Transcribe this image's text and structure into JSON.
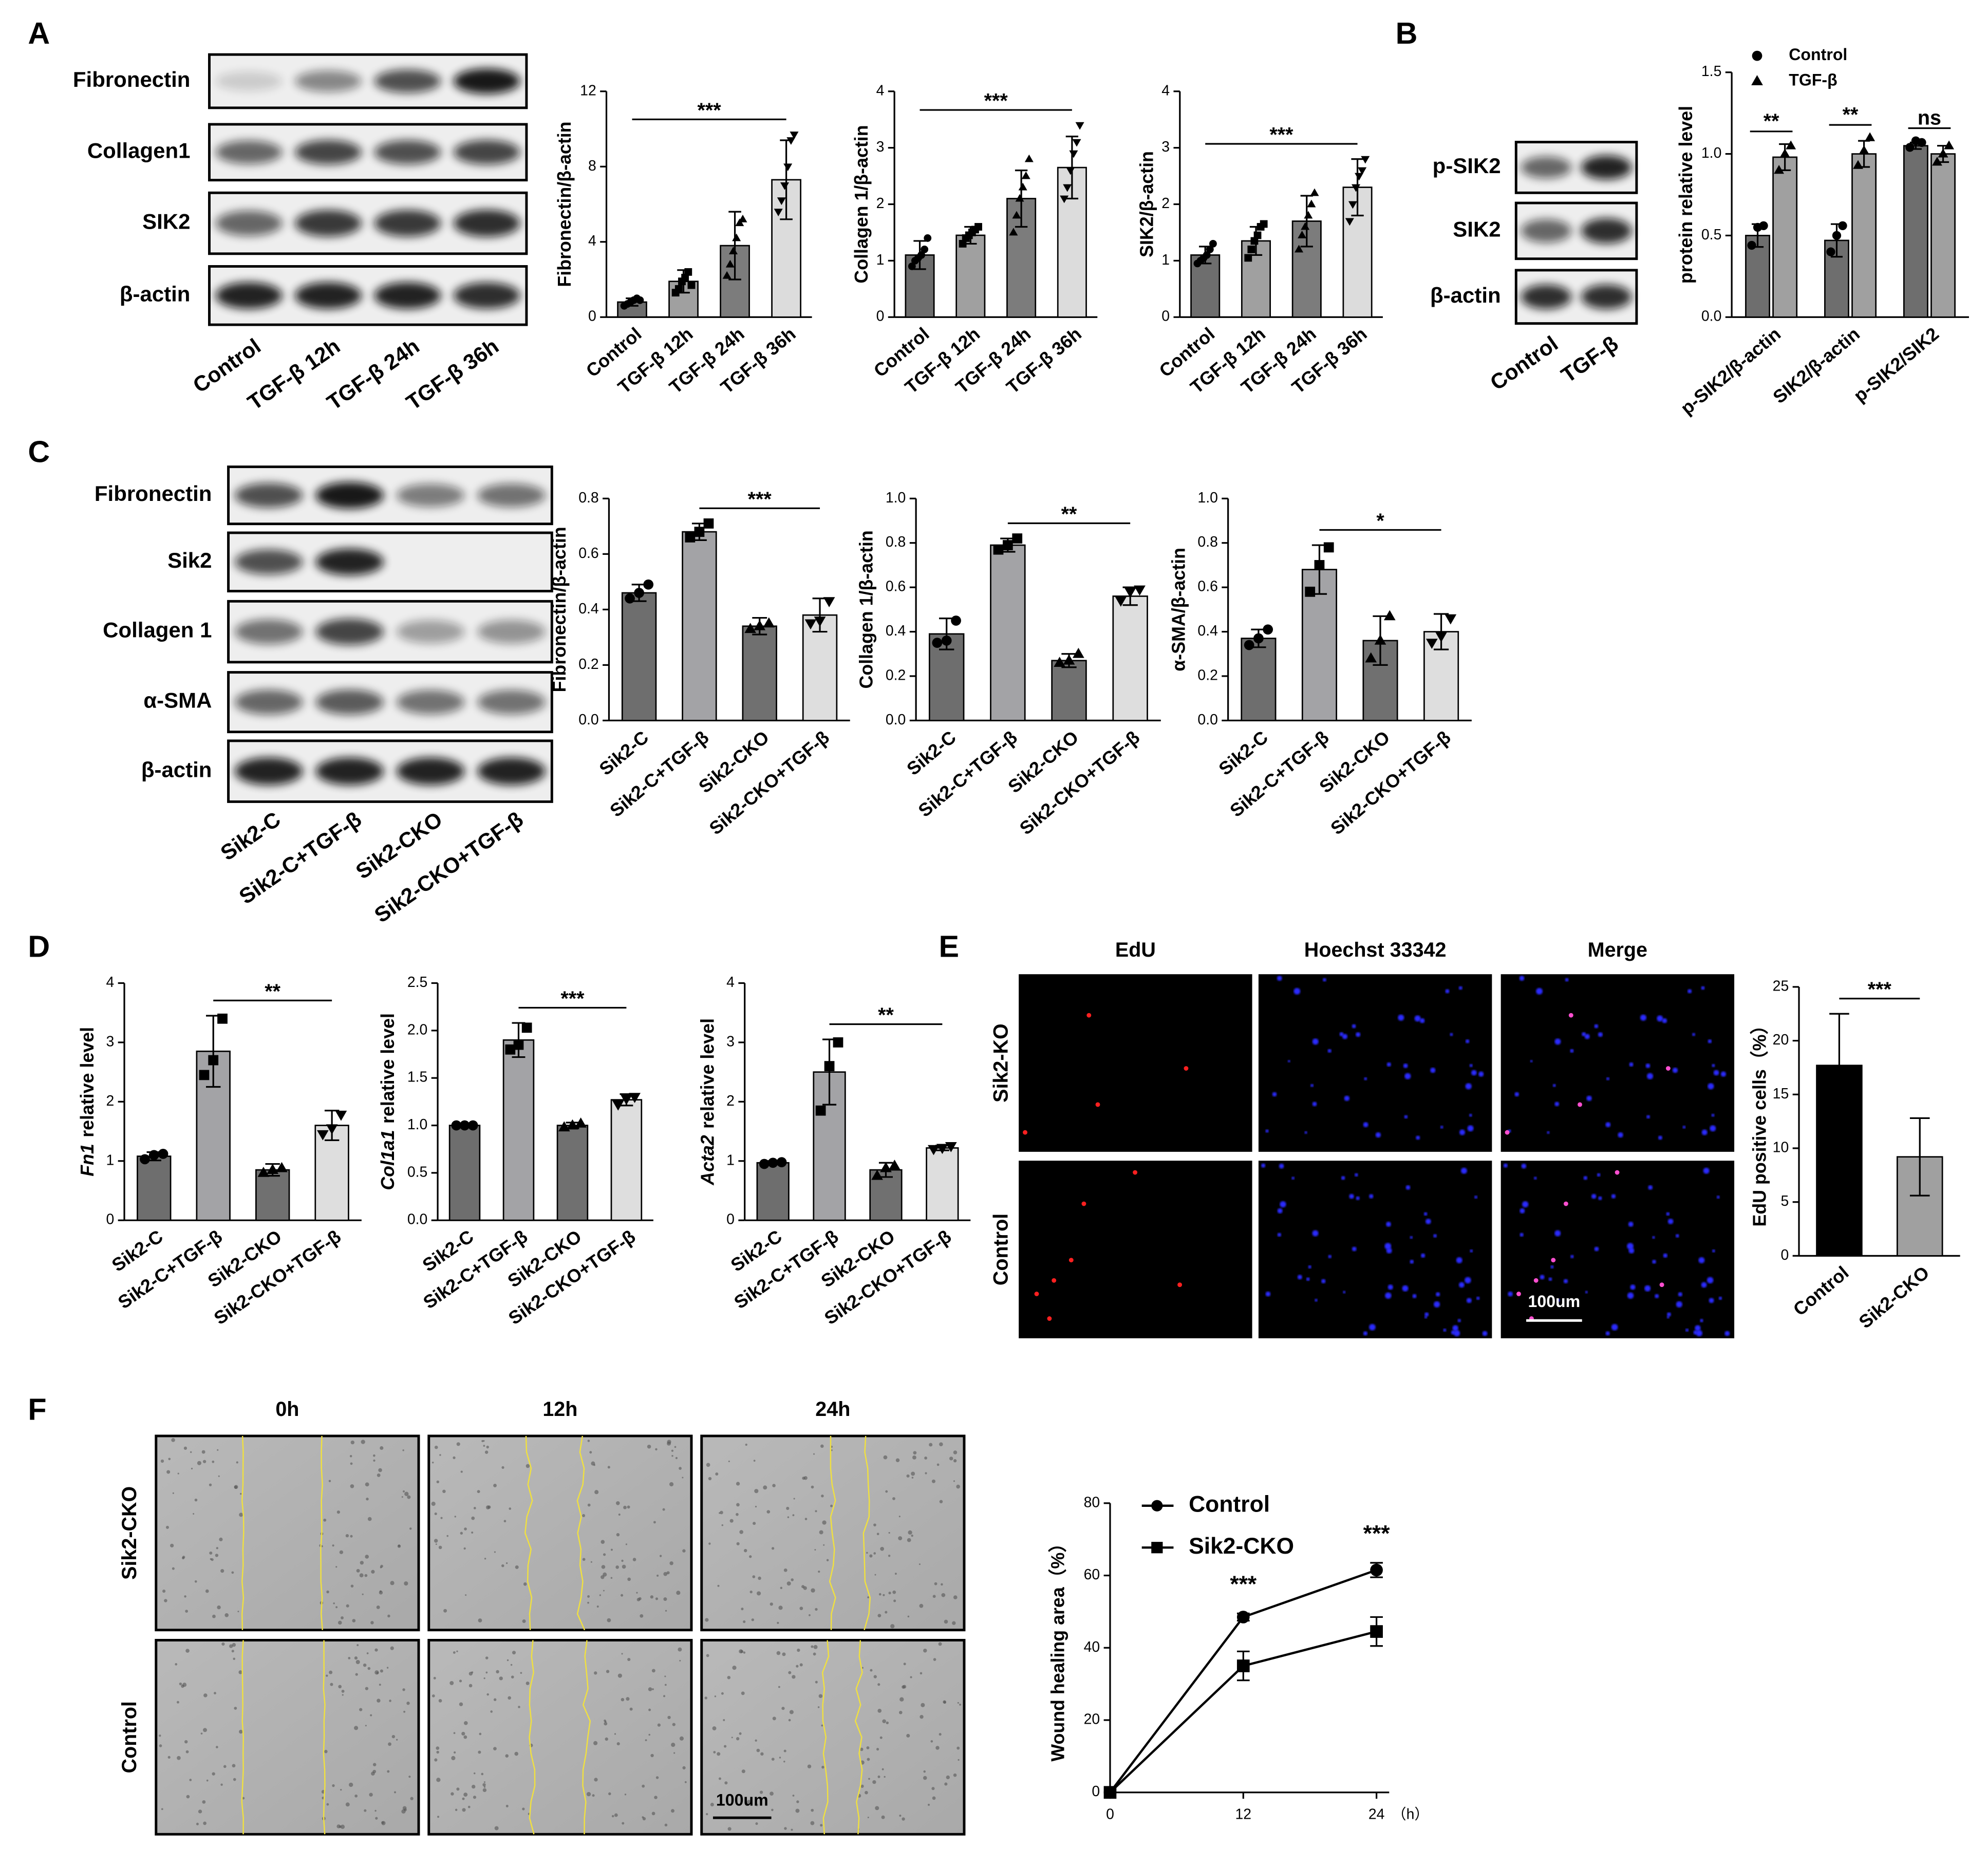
{
  "panel_letters": [
    "A",
    "B",
    "C",
    "D",
    "E",
    "F"
  ],
  "blots": [
    {
      "rows": [
        "Fibronectin",
        "Collagen1",
        "SIK2",
        "β-actin"
      ],
      "lanes": [
        "Control",
        "TGF-β 12h",
        "TGF-β 24h",
        "TGF-β 36h"
      ]
    },
    {
      "rows": [
        "p-SIK2",
        "SIK2",
        "β-actin"
      ],
      "lanes": [
        "Control",
        "TGF-β"
      ]
    },
    {
      "rows": [
        "Fibronectin",
        "Sik2",
        "Collagen 1",
        "α-SMA",
        "β-actin"
      ],
      "lanes": [
        "Sik2-C",
        "Sik2-C+TGF-β",
        "Sik2-CKO",
        "Sik2-CKO+TGF-β"
      ]
    }
  ],
  "edu": {
    "columns": [
      "EdU",
      "Hoechst 33342",
      "Merge"
    ],
    "rows": [
      "Sik2-KO",
      "Control"
    ],
    "scale_bar": "100um"
  },
  "wound": {
    "columns": [
      "0h",
      "12h",
      "24h"
    ],
    "rows": [
      "Sik2-CKO",
      "Control"
    ],
    "scale_bar": "100um"
  },
  "chart_data": [
    {
      "type": "bar",
      "ylabel": "Fibronectin/β-actin",
      "categories": [
        "Control",
        "TGF-β 12h",
        "TGF-β 24h",
        "TGF-β 36h"
      ],
      "values": [
        0.8,
        1.9,
        3.8,
        7.3
      ],
      "errors": [
        0.2,
        0.6,
        1.8,
        2.1
      ],
      "points": [
        [
          0.6,
          0.7,
          0.8,
          0.9,
          1.0,
          0.9
        ],
        [
          1.3,
          1.5,
          1.9,
          2.1,
          2.4,
          1.7
        ],
        [
          2.2,
          2.8,
          3.5,
          4.2,
          5.0,
          5.2
        ],
        [
          5.6,
          6.2,
          7.0,
          8.0,
          9.4,
          9.7
        ]
      ],
      "colors": [
        "#6e6e6e",
        "#a0a0a0",
        "#7c7c7c",
        "#dcdcdc"
      ],
      "markers": [
        "circle",
        "square",
        "triangle",
        "triangle-down"
      ],
      "ylim": [
        0,
        12
      ],
      "yticks": [
        0,
        4,
        8,
        12
      ],
      "annotations": [
        {
          "text": "***",
          "from": 0,
          "to": 3
        }
      ]
    },
    {
      "type": "bar",
      "ylabel": "Collagen 1/β-actin",
      "categories": [
        "Control",
        "TGF-β 12h",
        "TGF-β 24h",
        "TGF-β 36h"
      ],
      "values": [
        1.1,
        1.45,
        2.1,
        2.65
      ],
      "errors": [
        0.25,
        0.15,
        0.5,
        0.55
      ],
      "points": [
        [
          0.9,
          1.0,
          1.05,
          1.1,
          1.2,
          1.4
        ],
        [
          1.3,
          1.4,
          1.45,
          1.5,
          1.55,
          1.6
        ],
        [
          1.5,
          1.8,
          2.1,
          2.3,
          2.5,
          2.8
        ],
        [
          2.1,
          2.3,
          2.6,
          2.9,
          3.1,
          3.4
        ]
      ],
      "colors": [
        "#6e6e6e",
        "#a0a0a0",
        "#7c7c7c",
        "#dcdcdc"
      ],
      "markers": [
        "circle",
        "square",
        "triangle",
        "triangle-down"
      ],
      "ylim": [
        0,
        4
      ],
      "yticks": [
        0,
        1,
        2,
        3,
        4
      ],
      "annotations": [
        {
          "text": "***",
          "from": 0,
          "to": 3
        }
      ]
    },
    {
      "type": "bar",
      "ylabel": "SIK2/β-actin",
      "categories": [
        "Control",
        "TGF-β 12h",
        "TGF-β 24h",
        "TGF-β 36h"
      ],
      "values": [
        1.1,
        1.35,
        1.7,
        2.3
      ],
      "errors": [
        0.15,
        0.25,
        0.45,
        0.5
      ],
      "points": [
        [
          0.95,
          1.0,
          1.05,
          1.1,
          1.2,
          1.3
        ],
        [
          1.05,
          1.2,
          1.35,
          1.45,
          1.6,
          1.65
        ],
        [
          1.2,
          1.45,
          1.6,
          1.8,
          2.0,
          2.2
        ],
        [
          1.7,
          2.0,
          2.3,
          2.5,
          2.6,
          2.8
        ]
      ],
      "colors": [
        "#6e6e6e",
        "#a0a0a0",
        "#7c7c7c",
        "#dcdcdc"
      ],
      "markers": [
        "circle",
        "square",
        "triangle",
        "triangle-down"
      ],
      "ylim": [
        0,
        4
      ],
      "yticks": [
        0,
        1,
        2,
        3,
        4
      ],
      "annotations": [
        {
          "text": "***",
          "from": 0,
          "to": 3
        }
      ]
    },
    {
      "type": "grouped_bar",
      "ylabel": "protein relative level",
      "categories": [
        "p-SIK2/β-actin",
        "SIK2/β-actin",
        "p-SIK2/SIK2"
      ],
      "series": [
        {
          "name": "Control",
          "color": "#6e6e6e",
          "marker": "circle",
          "values": [
            0.5,
            0.47,
            1.05
          ],
          "errors": [
            0.07,
            0.1,
            0.02
          ],
          "points": [
            [
              0.44,
              0.55,
              0.56
            ],
            [
              0.4,
              0.5,
              0.56
            ],
            [
              1.04,
              1.08,
              1.07
            ]
          ]
        },
        {
          "name": "TGF-β",
          "color": "#a0a0a0",
          "marker": "triangle",
          "values": [
            0.98,
            1.0,
            1.0
          ],
          "errors": [
            0.08,
            0.08,
            0.05
          ],
          "points": [
            [
              0.9,
              1.0,
              1.05
            ],
            [
              0.93,
              1.02,
              1.1
            ],
            [
              0.95,
              1.0,
              1.05
            ]
          ]
        }
      ],
      "ylim": [
        0,
        1.5
      ],
      "yticks": [
        {
          "value": 0,
          "label": "0.0"
        },
        {
          "value": 0.5,
          "label": "0.5"
        },
        {
          "value": 1,
          "label": "1.0"
        },
        {
          "value": 1.5,
          "label": "1.5"
        }
      ],
      "annotations": [
        {
          "text": "**",
          "category": 0
        },
        {
          "text": "**",
          "category": 1
        },
        {
          "text": "ns",
          "category": 2
        }
      ]
    },
    {
      "type": "bar",
      "ylabel": "Fibronectin/β-actin",
      "categories": [
        "Sik2-C",
        "Sik2-C+TGF-β",
        "Sik2-CKO",
        "Sik2-CKO+TGF-β"
      ],
      "values": [
        0.46,
        0.68,
        0.34,
        0.38
      ],
      "errors": [
        0.03,
        0.03,
        0.03,
        0.06
      ],
      "points": [
        [
          0.44,
          0.46,
          0.49
        ],
        [
          0.66,
          0.68,
          0.71
        ],
        [
          0.33,
          0.34,
          0.35
        ],
        [
          0.35,
          0.36,
          0.43
        ]
      ],
      "colors": [
        "#6e6e6e",
        "#a3a3a6",
        "#707070",
        "#dedede"
      ],
      "markers": [
        "circle",
        "square",
        "triangle",
        "triangle-down"
      ],
      "ylim": [
        0,
        0.8
      ],
      "yticks": [
        {
          "value": 0,
          "label": "0.0"
        },
        {
          "value": 0.2,
          "label": "0.2"
        },
        {
          "value": 0.4,
          "label": "0.4"
        },
        {
          "value": 0.6,
          "label": "0.6"
        },
        {
          "value": 0.8,
          "label": "0.8"
        }
      ],
      "annotations": [
        {
          "text": "***",
          "from": 1,
          "to": 3
        }
      ]
    },
    {
      "type": "bar",
      "ylabel": "Collagen 1/β-actin",
      "categories": [
        "Sik2-C",
        "Sik2-C+TGF-β",
        "Sik2-CKO",
        "Sik2-CKO+TGF-β"
      ],
      "values": [
        0.39,
        0.79,
        0.27,
        0.56
      ],
      "errors": [
        0.07,
        0.03,
        0.03,
        0.04
      ],
      "points": [
        [
          0.35,
          0.36,
          0.45
        ],
        [
          0.77,
          0.79,
          0.82
        ],
        [
          0.26,
          0.27,
          0.3
        ],
        [
          0.54,
          0.58,
          0.59
        ]
      ],
      "colors": [
        "#6e6e6e",
        "#a3a3a6",
        "#707070",
        "#dedede"
      ],
      "markers": [
        "circle",
        "square",
        "triangle",
        "triangle-down"
      ],
      "ylim": [
        0,
        1
      ],
      "yticks": [
        {
          "value": 0,
          "label": "0.0"
        },
        {
          "value": 0.2,
          "label": "0.2"
        },
        {
          "value": 0.4,
          "label": "0.4"
        },
        {
          "value": 0.6,
          "label": "0.6"
        },
        {
          "value": 0.8,
          "label": "0.8"
        },
        {
          "value": 1,
          "label": "1.0"
        }
      ],
      "annotations": [
        {
          "text": "**",
          "from": 1,
          "to": 3
        }
      ]
    },
    {
      "type": "bar",
      "ylabel": "α-SMA/β-actin",
      "categories": [
        "Sik2-C",
        "Sik2-C+TGF-β",
        "Sik2-CKO",
        "Sik2-CKO+TGF-β"
      ],
      "values": [
        0.37,
        0.68,
        0.36,
        0.4
      ],
      "errors": [
        0.04,
        0.11,
        0.11,
        0.08
      ],
      "points": [
        [
          0.34,
          0.37,
          0.41
        ],
        [
          0.58,
          0.7,
          0.78
        ],
        [
          0.28,
          0.36,
          0.47
        ],
        [
          0.35,
          0.38,
          0.46
        ]
      ],
      "colors": [
        "#6e6e6e",
        "#a3a3a6",
        "#707070",
        "#dedede"
      ],
      "markers": [
        "circle",
        "square",
        "triangle",
        "triangle-down"
      ],
      "ylim": [
        0,
        1
      ],
      "yticks": [
        {
          "value": 0,
          "label": "0.0"
        },
        {
          "value": 0.2,
          "label": "0.2"
        },
        {
          "value": 0.4,
          "label": "0.4"
        },
        {
          "value": 0.6,
          "label": "0.6"
        },
        {
          "value": 0.8,
          "label": "0.8"
        },
        {
          "value": 1,
          "label": "1.0"
        }
      ],
      "annotations": [
        {
          "text": "*",
          "from": 1,
          "to": 3
        }
      ]
    },
    {
      "type": "bar",
      "ylabel_italic": "Fn1",
      "ylabel": "relative level",
      "categories": [
        "Sik2-C",
        "Sik2-C+TGF-β",
        "Sik2-CKO",
        "Sik2-CKO+TGF-β"
      ],
      "values": [
        1.08,
        2.85,
        0.85,
        1.6
      ],
      "errors": [
        0.07,
        0.6,
        0.1,
        0.25
      ],
      "points": [
        [
          1.03,
          1.1,
          1.12
        ],
        [
          2.45,
          2.7,
          3.4
        ],
        [
          0.8,
          0.85,
          0.88
        ],
        [
          1.45,
          1.55,
          1.78
        ]
      ],
      "colors": [
        "#6e6e6e",
        "#a3a3a6",
        "#707070",
        "#dedede"
      ],
      "markers": [
        "circle",
        "square",
        "triangle",
        "triangle-down"
      ],
      "ylim": [
        0,
        4
      ],
      "yticks": [
        0,
        1,
        2,
        3,
        4
      ],
      "annotations": [
        {
          "text": "**",
          "from": 1,
          "to": 3
        }
      ]
    },
    {
      "type": "bar",
      "ylabel_italic": "Col1a1",
      "ylabel": "relative level",
      "categories": [
        "Sik2-C",
        "Sik2-C+TGF-β",
        "Sik2-CKO",
        "Sik2-CKO+TGF-β"
      ],
      "values": [
        1.0,
        1.9,
        1.0,
        1.27
      ],
      "errors": [
        0.02,
        0.18,
        0.03,
        0.06
      ],
      "points": [
        [
          1.0,
          1.0,
          1.0
        ],
        [
          1.8,
          1.85,
          2.03
        ],
        [
          0.98,
          1.0,
          1.02
        ],
        [
          1.22,
          1.28,
          1.3
        ]
      ],
      "colors": [
        "#6e6e6e",
        "#a3a3a6",
        "#707070",
        "#dedede"
      ],
      "markers": [
        "circle",
        "square",
        "triangle",
        "triangle-down"
      ],
      "ylim": [
        0,
        2.5
      ],
      "yticks": [
        {
          "value": 0,
          "label": "0.0"
        },
        {
          "value": 0.5,
          "label": "0.5"
        },
        {
          "value": 1,
          "label": "1.0"
        },
        {
          "value": 1.5,
          "label": "1.5"
        },
        {
          "value": 2,
          "label": "2.0"
        },
        {
          "value": 2.5,
          "label": "2.5"
        }
      ],
      "annotations": [
        {
          "text": "***",
          "from": 1,
          "to": 3
        }
      ]
    },
    {
      "type": "bar",
      "ylabel_italic": "Acta2",
      "ylabel": "relative level",
      "categories": [
        "Sik2-C",
        "Sik2-C+TGF-β",
        "Sik2-CKO",
        "Sik2-CKO+TGF-β"
      ],
      "values": [
        0.97,
        2.5,
        0.85,
        1.22
      ],
      "errors": [
        0.03,
        0.55,
        0.12,
        0.04
      ],
      "points": [
        [
          0.95,
          0.97,
          0.98
        ],
        [
          1.85,
          2.6,
          3.0
        ],
        [
          0.75,
          0.88,
          0.92
        ],
        [
          1.2,
          1.22,
          1.25
        ]
      ],
      "colors": [
        "#6e6e6e",
        "#a3a3a6",
        "#707070",
        "#dedede"
      ],
      "markers": [
        "circle",
        "square",
        "triangle",
        "triangle-down"
      ],
      "ylim": [
        0,
        4
      ],
      "yticks": [
        0,
        1,
        2,
        3,
        4
      ],
      "annotations": [
        {
          "text": "**",
          "from": 1,
          "to": 3
        }
      ]
    },
    {
      "type": "bar",
      "ylabel": "EdU positive cells（%）",
      "categories": [
        "Control",
        "Sik2-CKO"
      ],
      "values": [
        17.7,
        9.2
      ],
      "errors": [
        4.8,
        3.6
      ],
      "colors": [
        "#000000",
        "#a0a0a0"
      ],
      "ylim": [
        0,
        25
      ],
      "yticks": [
        0,
        5,
        10,
        15,
        20,
        25
      ],
      "annotations": [
        {
          "text": "***",
          "from": 0,
          "to": 1
        }
      ]
    },
    {
      "type": "line",
      "ylabel": "Wound healing area（%）",
      "xlabel": "（h）",
      "x": [
        0,
        12,
        24
      ],
      "xlim": [
        0,
        24
      ],
      "xticks": [
        0,
        12,
        24
      ],
      "series": [
        {
          "name": "Control",
          "color": "#000000",
          "marker": "circle",
          "values": [
            0,
            48.5,
            61.5
          ],
          "errors": [
            0,
            1,
            2
          ]
        },
        {
          "name": "Sik2-CKO",
          "color": "#000000",
          "marker": "square",
          "values": [
            0,
            35,
            44.5
          ],
          "errors": [
            0,
            4,
            4
          ]
        }
      ],
      "ylim": [
        0,
        80
      ],
      "yticks": [
        0,
        20,
        40,
        60,
        80
      ],
      "annotations": [
        {
          "text": "***",
          "x": 12
        },
        {
          "text": "***",
          "x": 24
        }
      ]
    }
  ]
}
